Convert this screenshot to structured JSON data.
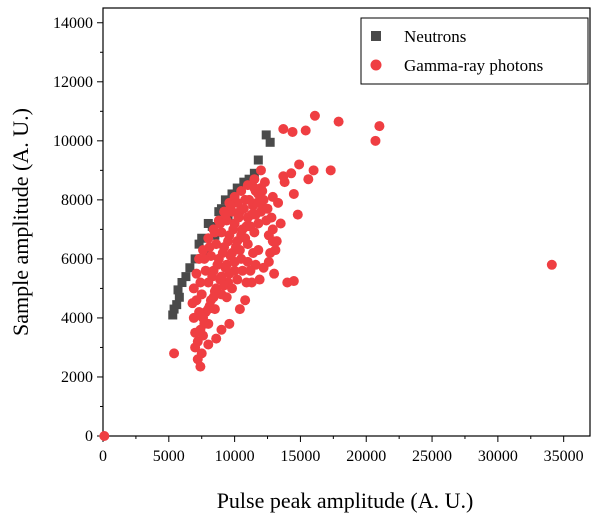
{
  "chart_data": {
    "type": "scatter",
    "title": "",
    "xlabel": "Pulse peak amplitude (A. U.)",
    "ylabel": "Sample amplitude (A. U.)",
    "xlim": [
      0,
      37000
    ],
    "ylim": [
      0,
      14500
    ],
    "xticks": [
      0,
      5000,
      10000,
      15000,
      20000,
      25000,
      30000,
      35000
    ],
    "yticks": [
      0,
      2000,
      4000,
      6000,
      8000,
      10000,
      12000,
      14000
    ],
    "grid": false,
    "legend_position": "top-right",
    "colors": {
      "neutrons": "#4a4a4a",
      "gamma": "#ef3e42"
    },
    "series": [
      {
        "name": "Neutrons",
        "marker": "square",
        "points": [
          [
            5300,
            4100
          ],
          [
            5400,
            4300
          ],
          [
            5600,
            4450
          ],
          [
            5800,
            4700
          ],
          [
            5700,
            4950
          ],
          [
            6000,
            5200
          ],
          [
            6300,
            5400
          ],
          [
            6600,
            5700
          ],
          [
            7000,
            6000
          ],
          [
            7300,
            6500
          ],
          [
            7500,
            6700
          ],
          [
            8000,
            7200
          ],
          [
            8300,
            7100
          ],
          [
            8800,
            7600
          ],
          [
            9300,
            8000
          ],
          [
            9000,
            7700
          ],
          [
            9800,
            8200
          ],
          [
            10200,
            8400
          ],
          [
            10700,
            8600
          ],
          [
            11100,
            8700
          ],
          [
            11500,
            8900
          ],
          [
            11800,
            9350
          ],
          [
            12400,
            10200
          ],
          [
            12700,
            9950
          ],
          [
            9500,
            7400
          ],
          [
            10000,
            7900
          ],
          [
            8500,
            6800
          ],
          [
            7800,
            6300
          ]
        ]
      },
      {
        "name": "Gamma-ray photons",
        "marker": "circle",
        "points": [
          [
            100,
            0
          ],
          [
            5400,
            2800
          ],
          [
            7400,
            2350
          ],
          [
            34100,
            5800
          ],
          [
            13700,
            10400
          ],
          [
            14400,
            10300
          ],
          [
            16100,
            10850
          ],
          [
            17900,
            10650
          ],
          [
            21000,
            10500
          ],
          [
            20700,
            10000
          ],
          [
            15400,
            10350
          ],
          [
            14900,
            9200
          ],
          [
            16000,
            9000
          ],
          [
            17300,
            9000
          ],
          [
            13800,
            8600
          ],
          [
            14500,
            8200
          ],
          [
            15600,
            8700
          ],
          [
            12900,
            8100
          ],
          [
            13700,
            8800
          ],
          [
            14000,
            5200
          ],
          [
            14500,
            5250
          ],
          [
            14800,
            7500
          ],
          [
            13200,
            6600
          ],
          [
            12900,
            7000
          ],
          [
            13500,
            7200
          ],
          [
            12700,
            6200
          ],
          [
            11800,
            6300
          ],
          [
            11600,
            5800
          ],
          [
            11300,
            5200
          ],
          [
            10800,
            4600
          ],
          [
            10400,
            4300
          ],
          [
            9600,
            3800
          ],
          [
            9000,
            3600
          ],
          [
            8600,
            3300
          ],
          [
            8000,
            3100
          ],
          [
            7500,
            2800
          ],
          [
            7200,
            3200
          ],
          [
            7000,
            3500
          ],
          [
            6900,
            4000
          ],
          [
            6800,
            4500
          ],
          [
            6900,
            5000
          ],
          [
            7100,
            5500
          ],
          [
            7300,
            6000
          ],
          [
            7600,
            6300
          ],
          [
            8000,
            6700
          ],
          [
            8400,
            7000
          ],
          [
            8800,
            7300
          ],
          [
            9200,
            7600
          ],
          [
            9600,
            7900
          ],
          [
            10000,
            8100
          ],
          [
            10500,
            8300
          ],
          [
            11000,
            8500
          ],
          [
            11500,
            8700
          ],
          [
            12000,
            8400
          ],
          [
            12200,
            8000
          ],
          [
            12000,
            7600
          ],
          [
            11800,
            7200
          ],
          [
            11500,
            6900
          ],
          [
            11000,
            6500
          ],
          [
            10500,
            6000
          ],
          [
            10000,
            5600
          ],
          [
            9500,
            5200
          ],
          [
            9000,
            4800
          ],
          [
            8500,
            4300
          ],
          [
            8000,
            3800
          ],
          [
            7600,
            3400
          ],
          [
            7800,
            4200
          ],
          [
            8200,
            4600
          ],
          [
            8600,
            5000
          ],
          [
            9000,
            5400
          ],
          [
            9400,
            5800
          ],
          [
            9800,
            6200
          ],
          [
            10200,
            6600
          ],
          [
            10600,
            7000
          ],
          [
            11000,
            7400
          ],
          [
            11400,
            7800
          ],
          [
            11800,
            8200
          ],
          [
            8000,
            5200
          ],
          [
            8400,
            5600
          ],
          [
            8800,
            6000
          ],
          [
            9200,
            6400
          ],
          [
            9600,
            6800
          ],
          [
            10000,
            7200
          ],
          [
            10400,
            7600
          ],
          [
            10800,
            8000
          ],
          [
            7500,
            4800
          ],
          [
            7800,
            5600
          ],
          [
            8200,
            6100
          ],
          [
            8600,
            6500
          ],
          [
            9000,
            6900
          ],
          [
            9400,
            7300
          ],
          [
            9800,
            7600
          ],
          [
            10200,
            7900
          ],
          [
            7300,
            4200
          ],
          [
            7700,
            3800
          ],
          [
            8100,
            4400
          ],
          [
            8500,
            4900
          ],
          [
            8900,
            5300
          ],
          [
            9300,
            5700
          ],
          [
            9700,
            6100
          ],
          [
            10100,
            6400
          ],
          [
            10500,
            6800
          ],
          [
            10900,
            7100
          ],
          [
            11300,
            7500
          ],
          [
            11700,
            7900
          ],
          [
            12100,
            8300
          ],
          [
            12300,
            8600
          ],
          [
            12000,
            9000
          ],
          [
            11600,
            8300
          ],
          [
            7000,
            3000
          ],
          [
            7200,
            2600
          ],
          [
            7400,
            3600
          ],
          [
            7600,
            4000
          ],
          [
            8300,
            5400
          ],
          [
            8700,
            5800
          ],
          [
            9100,
            6200
          ],
          [
            9500,
            6600
          ],
          [
            9900,
            7000
          ],
          [
            10300,
            7400
          ],
          [
            10700,
            7700
          ],
          [
            11100,
            8000
          ],
          [
            11500,
            8400
          ],
          [
            8000,
            4300
          ],
          [
            8400,
            4700
          ],
          [
            9200,
            5100
          ],
          [
            9600,
            5500
          ],
          [
            10000,
            5900
          ],
          [
            10400,
            6300
          ],
          [
            10800,
            6700
          ],
          [
            11200,
            7100
          ],
          [
            11600,
            7500
          ],
          [
            12000,
            7900
          ],
          [
            9400,
            4700
          ],
          [
            9800,
            5000
          ],
          [
            10200,
            5300
          ],
          [
            10600,
            5600
          ],
          [
            11000,
            5900
          ],
          [
            11400,
            6200
          ],
          [
            11200,
            5600
          ],
          [
            10900,
            5200
          ],
          [
            7100,
            4600
          ],
          [
            7400,
            5200
          ],
          [
            7700,
            6000
          ],
          [
            8100,
            6400
          ],
          [
            8500,
            6900
          ],
          [
            8900,
            7200
          ],
          [
            9300,
            7500
          ],
          [
            9700,
            7800
          ],
          [
            12400,
            7300
          ],
          [
            12600,
            6800
          ],
          [
            12500,
            7700
          ],
          [
            12800,
            7400
          ],
          [
            13000,
            5500
          ],
          [
            12600,
            5900
          ],
          [
            11900,
            5300
          ],
          [
            12200,
            5700
          ],
          [
            13100,
            6300
          ],
          [
            12900,
            6600
          ],
          [
            14300,
            8900
          ],
          [
            13300,
            7900
          ]
        ]
      }
    ]
  }
}
